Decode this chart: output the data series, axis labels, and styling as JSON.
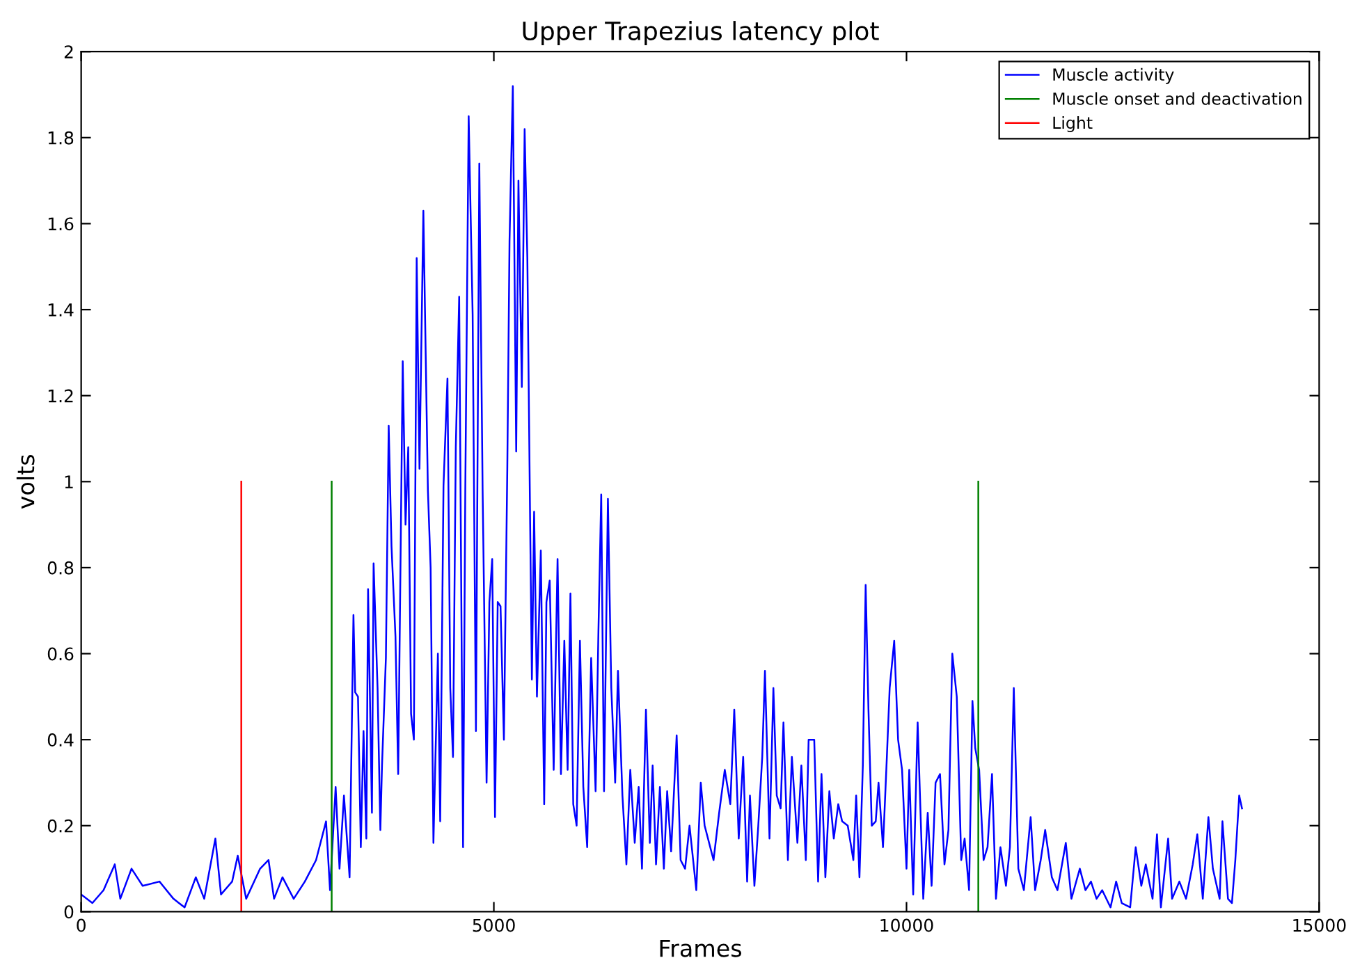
{
  "chart_data": {
    "type": "line",
    "title": "Upper Trapezius latency plot",
    "xlabel": "Frames",
    "ylabel": "volts",
    "xlim": [
      0,
      15000
    ],
    "xticks": [
      0,
      5000,
      10000,
      15000
    ],
    "ylim": [
      0,
      2
    ],
    "yticks": [
      0,
      0.2,
      0.4,
      0.6,
      0.8,
      1,
      1.2,
      1.4,
      1.6,
      1.8,
      2
    ],
    "grid": false,
    "legend": "top right",
    "line_style": "solid",
    "marker": "none",
    "series": [
      {
        "name": "Muscle activity",
        "color": "#0000ff",
        "x": [
          0,
          136,
          271,
          407,
          474,
          610,
          745,
          949,
          1118,
          1253,
          1389,
          1491,
          1626,
          1694,
          1829,
          1897,
          1999,
          2168,
          2270,
          2337,
          2439,
          2575,
          2710,
          2846,
          2967,
          3015,
          3083,
          3130,
          3184,
          3252,
          3299,
          3320,
          3354,
          3388,
          3421,
          3455,
          3476,
          3523,
          3543,
          3591,
          3625,
          3645,
          3692,
          3726,
          3760,
          3808,
          3841,
          3896,
          3930,
          3963,
          3997,
          4031,
          4065,
          4099,
          4146,
          4201,
          4234,
          4268,
          4322,
          4350,
          4390,
          4438,
          4472,
          4505,
          4539,
          4580,
          4627,
          4654,
          4695,
          4743,
          4783,
          4824,
          4864,
          4912,
          4946,
          4980,
          5014,
          5047,
          5081,
          5122,
          5163,
          5190,
          5230,
          5271,
          5298,
          5339,
          5373,
          5406,
          5440,
          5461,
          5488,
          5522,
          5569,
          5610,
          5637,
          5677,
          5725,
          5772,
          5813,
          5854,
          5894,
          5928,
          5962,
          6003,
          6043,
          6084,
          6131,
          6179,
          6233,
          6267,
          6301,
          6335,
          6382,
          6423,
          6470,
          6504,
          6558,
          6606,
          6653,
          6707,
          6755,
          6795,
          6843,
          6890,
          6924,
          6965,
          7012,
          7060,
          7100,
          7148,
          7215,
          7263,
          7317,
          7371,
          7453,
          7507,
          7554,
          7662,
          7730,
          7798,
          7865,
          7913,
          7967,
          8021,
          8069,
          8103,
          8157,
          8204,
          8252,
          8285,
          8340,
          8387,
          8428,
          8475,
          8509,
          8563,
          8611,
          8678,
          8726,
          8780,
          8814,
          8882,
          8929,
          8970,
          9017,
          9065,
          9119,
          9173,
          9220,
          9288,
          9356,
          9390,
          9430,
          9471,
          9505,
          9539,
          9579,
          9627,
          9661,
          9715,
          9762,
          9796,
          9851,
          9898,
          9946,
          10000,
          10033,
          10081,
          10135,
          10203,
          10257,
          10304,
          10352,
          10406,
          10460,
          10508,
          10555,
          10609,
          10663,
          10704,
          10758,
          10799,
          10833,
          10880,
          10934,
          10982,
          11036,
          11084,
          11138,
          11205,
          11253,
          11300,
          11355,
          11422,
          11504,
          11558,
          11626,
          11680,
          11761,
          11829,
          11930,
          11998,
          12100,
          12168,
          12235,
          12303,
          12371,
          12472,
          12540,
          12608,
          12710,
          12777,
          12845,
          12899,
          12981,
          13035,
          13082,
          13170,
          13218,
          13306,
          13387,
          13468,
          13523,
          13590,
          13658,
          13712,
          13794,
          13828,
          13895,
          13943,
          13984,
          14031,
          14065
        ],
        "values": [
          0.04,
          0.02,
          0.05,
          0.11,
          0.03,
          0.1,
          0.06,
          0.07,
          0.03,
          0.01,
          0.08,
          0.03,
          0.17,
          0.04,
          0.07,
          0.13,
          0.03,
          0.1,
          0.12,
          0.03,
          0.08,
          0.03,
          0.07,
          0.12,
          0.21,
          0.05,
          0.29,
          0.1,
          0.27,
          0.08,
          0.69,
          0.51,
          0.5,
          0.15,
          0.42,
          0.17,
          0.75,
          0.23,
          0.81,
          0.52,
          0.19,
          0.34,
          0.59,
          1.13,
          0.85,
          0.64,
          0.32,
          1.28,
          0.9,
          1.08,
          0.46,
          0.4,
          1.52,
          1.03,
          1.63,
          0.98,
          0.8,
          0.16,
          0.6,
          0.21,
          0.99,
          1.24,
          0.52,
          0.36,
          1.08,
          1.43,
          0.15,
          0.98,
          1.85,
          1.39,
          0.42,
          1.74,
          0.98,
          0.3,
          0.72,
          0.82,
          0.22,
          0.72,
          0.71,
          0.4,
          1.03,
          1.56,
          1.92,
          1.07,
          1.7,
          1.22,
          1.82,
          1.52,
          0.9,
          0.54,
          0.93,
          0.5,
          0.84,
          0.25,
          0.72,
          0.77,
          0.33,
          0.82,
          0.32,
          0.63,
          0.33,
          0.74,
          0.25,
          0.2,
          0.63,
          0.29,
          0.15,
          0.59,
          0.28,
          0.65,
          0.97,
          0.28,
          0.96,
          0.52,
          0.3,
          0.56,
          0.27,
          0.11,
          0.33,
          0.16,
          0.29,
          0.1,
          0.47,
          0.16,
          0.34,
          0.11,
          0.29,
          0.1,
          0.28,
          0.14,
          0.41,
          0.12,
          0.1,
          0.2,
          0.05,
          0.3,
          0.2,
          0.12,
          0.23,
          0.33,
          0.25,
          0.47,
          0.17,
          0.36,
          0.07,
          0.27,
          0.06,
          0.2,
          0.36,
          0.56,
          0.17,
          0.52,
          0.27,
          0.24,
          0.44,
          0.12,
          0.36,
          0.16,
          0.34,
          0.12,
          0.4,
          0.4,
          0.07,
          0.32,
          0.08,
          0.28,
          0.17,
          0.25,
          0.21,
          0.2,
          0.12,
          0.27,
          0.08,
          0.34,
          0.76,
          0.47,
          0.2,
          0.21,
          0.3,
          0.15,
          0.36,
          0.52,
          0.63,
          0.4,
          0.33,
          0.1,
          0.33,
          0.04,
          0.44,
          0.03,
          0.23,
          0.06,
          0.3,
          0.32,
          0.11,
          0.19,
          0.6,
          0.5,
          0.12,
          0.17,
          0.05,
          0.49,
          0.38,
          0.33,
          0.12,
          0.15,
          0.32,
          0.03,
          0.15,
          0.06,
          0.15,
          0.52,
          0.1,
          0.05,
          0.22,
          0.05,
          0.12,
          0.19,
          0.08,
          0.05,
          0.16,
          0.03,
          0.1,
          0.05,
          0.07,
          0.03,
          0.05,
          0.01,
          0.07,
          0.02,
          0.01,
          0.15,
          0.06,
          0.11,
          0.03,
          0.18,
          0.01,
          0.17,
          0.03,
          0.07,
          0.03,
          0.11,
          0.18,
          0.03,
          0.22,
          0.1,
          0.03,
          0.21,
          0.03,
          0.02,
          0.12,
          0.27,
          0.24
        ]
      },
      {
        "name": "Muscle onset and deactivation",
        "color": "#008000",
        "x": [
          3035,
          3035,
          null,
          10870,
          10870
        ],
        "values": [
          0,
          1,
          null,
          0,
          1
        ]
      },
      {
        "name": "Light",
        "color": "#ff0000",
        "x": [
          1940,
          1940
        ],
        "values": [
          0,
          1
        ]
      }
    ]
  }
}
